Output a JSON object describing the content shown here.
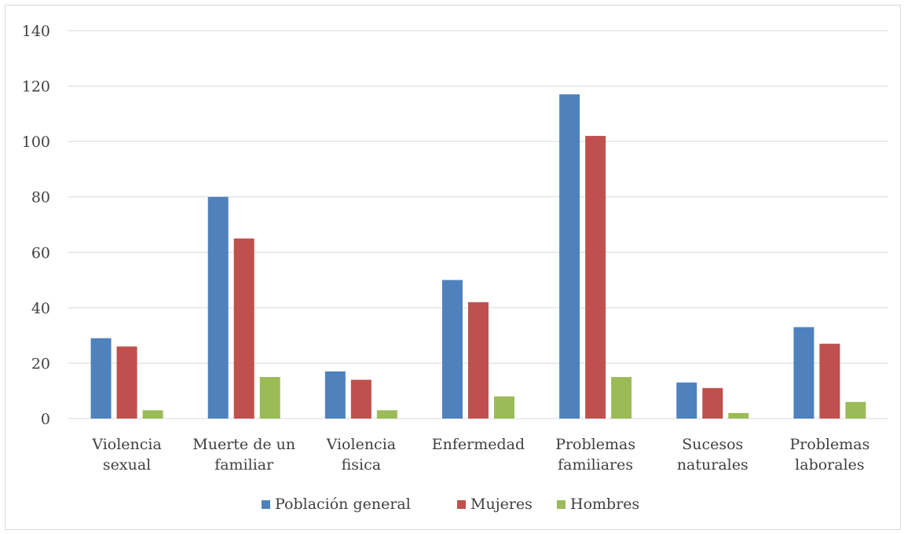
{
  "chart_data": {
    "type": "bar",
    "title": "",
    "xlabel": "",
    "ylabel": "",
    "ylim": [
      0,
      140
    ],
    "yticks": [
      0,
      20,
      40,
      60,
      80,
      100,
      120,
      140
    ],
    "grid": true,
    "legend_position": "bottom",
    "categories": [
      [
        "Violencia",
        "sexual"
      ],
      [
        "Muerte de un",
        "familiar"
      ],
      [
        "Violencia",
        "fisica"
      ],
      [
        "Enfermedad"
      ],
      [
        "Problemas",
        "familiares"
      ],
      [
        "Sucesos",
        "naturales"
      ],
      [
        "Problemas",
        "laborales"
      ]
    ],
    "series": [
      {
        "name": "Población general",
        "color": "#4f81bd",
        "values": [
          29,
          80,
          17,
          50,
          117,
          13,
          33
        ]
      },
      {
        "name": "Mujeres",
        "color": "#c0504d",
        "values": [
          26,
          65,
          14,
          42,
          102,
          11,
          27
        ]
      },
      {
        "name": "Hombres",
        "color": "#9bbb59",
        "values": [
          3,
          15,
          3,
          8,
          15,
          2,
          6
        ]
      }
    ]
  }
}
